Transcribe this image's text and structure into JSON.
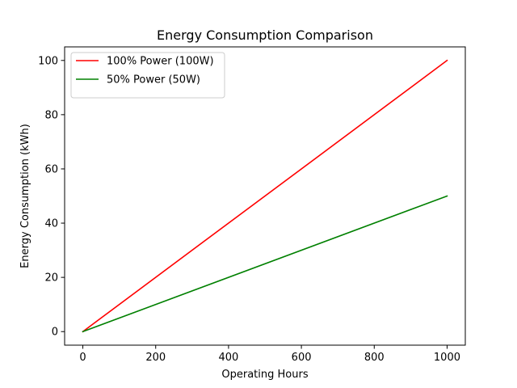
{
  "chart_data": {
    "type": "line",
    "title": "Energy Consumption Comparison",
    "xlabel": "Operating Hours",
    "ylabel": "Energy Consumption (kWh)",
    "xlim": [
      -50,
      1050
    ],
    "ylim": [
      -5,
      105
    ],
    "xticks": [
      0,
      200,
      400,
      600,
      800,
      1000
    ],
    "yticks": [
      0,
      20,
      40,
      60,
      80,
      100
    ],
    "grid": false,
    "legend_position": "top-left",
    "series": [
      {
        "name": "100% Power (100W)",
        "color": "#ff0000",
        "x": [
          0,
          1000
        ],
        "y": [
          0,
          100
        ]
      },
      {
        "name": "50% Power (50W)",
        "color": "#008000",
        "x": [
          0,
          1000
        ],
        "y": [
          0,
          50
        ]
      }
    ]
  }
}
